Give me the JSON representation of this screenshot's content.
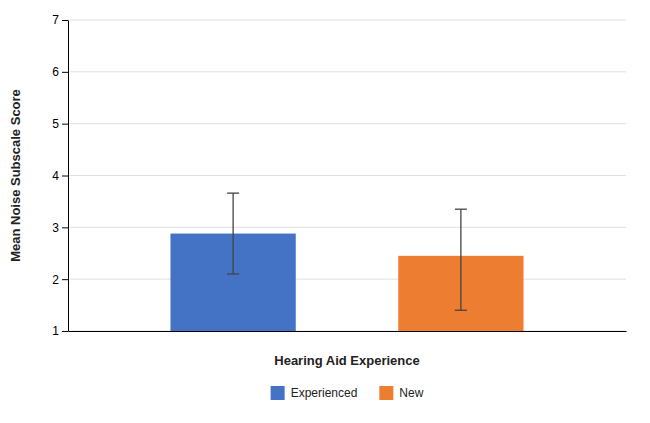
{
  "chart_data": {
    "type": "bar",
    "categories": [
      "Experienced",
      "New"
    ],
    "values": [
      2.88,
      2.45
    ],
    "errors_upper": [
      0.78,
      0.9
    ],
    "errors_lower": [
      0.78,
      1.05
    ],
    "colors": [
      "#4472C4",
      "#ED7D31"
    ],
    "xlabel": "Hearing Aid Experience",
    "ylabel": "Mean Noise Subscale Score",
    "ylim": [
      1,
      7
    ],
    "yticks": [
      1,
      2,
      3,
      4,
      5,
      6,
      7
    ],
    "grid": true,
    "legend": "bottom",
    "tick_labels": "y"
  }
}
